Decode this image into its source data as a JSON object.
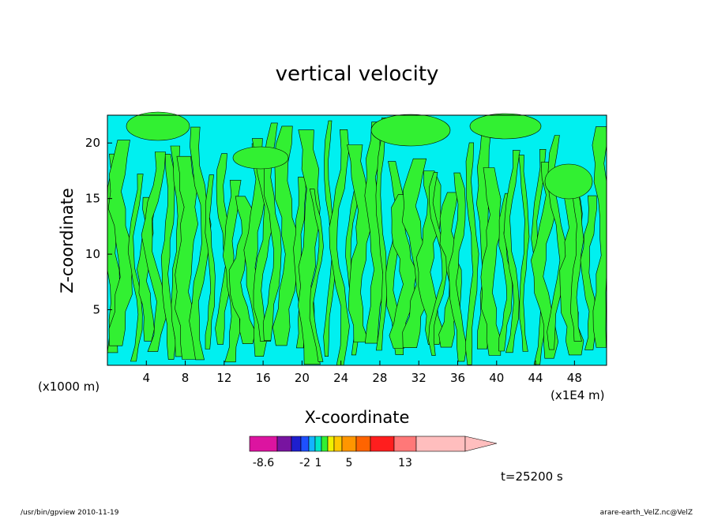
{
  "chart_data": {
    "type": "heatmap",
    "title": "vertical velocity",
    "xlabel": "X-coordinate",
    "ylabel": "Z-coordinate",
    "x_unit": "(x1E4 m)",
    "y_unit": "(x1000 m)",
    "xlim": [
      0,
      51.3
    ],
    "ylim": [
      0,
      22.5
    ],
    "x_ticks": [
      4,
      8,
      12,
      16,
      20,
      24,
      28,
      32,
      36,
      40,
      44,
      48
    ],
    "y_ticks": [
      5,
      10,
      15,
      20
    ],
    "colorbar": {
      "tick_labels": [
        {
          "text": "-8.6",
          "index": 0
        },
        {
          "text": "-2",
          "index": 3
        },
        {
          "text": "1",
          "index": 5
        },
        {
          "text": "5",
          "index": 9
        },
        {
          "text": "13",
          "index": 12
        }
      ],
      "colors": [
        "#dc14a0",
        "#7814a0",
        "#1e1ecd",
        "#1e50ff",
        "#14b4ff",
        "#00e6c8",
        "#32f032",
        "#f0f000",
        "#ffc800",
        "#ff9600",
        "#ff6400",
        "#ff1e1e",
        "#ff7878",
        "#ffbebe"
      ],
      "dominant_colors": {
        "weak_updraft": "#32f032",
        "weak_downdraft": "#00f0f0"
      }
    },
    "time_label": "t=25200 s"
  },
  "footer": {
    "left": "/usr/bin/gpview   2010-11-19",
    "right": "arare-earth_VelZ.nc@VelZ"
  }
}
